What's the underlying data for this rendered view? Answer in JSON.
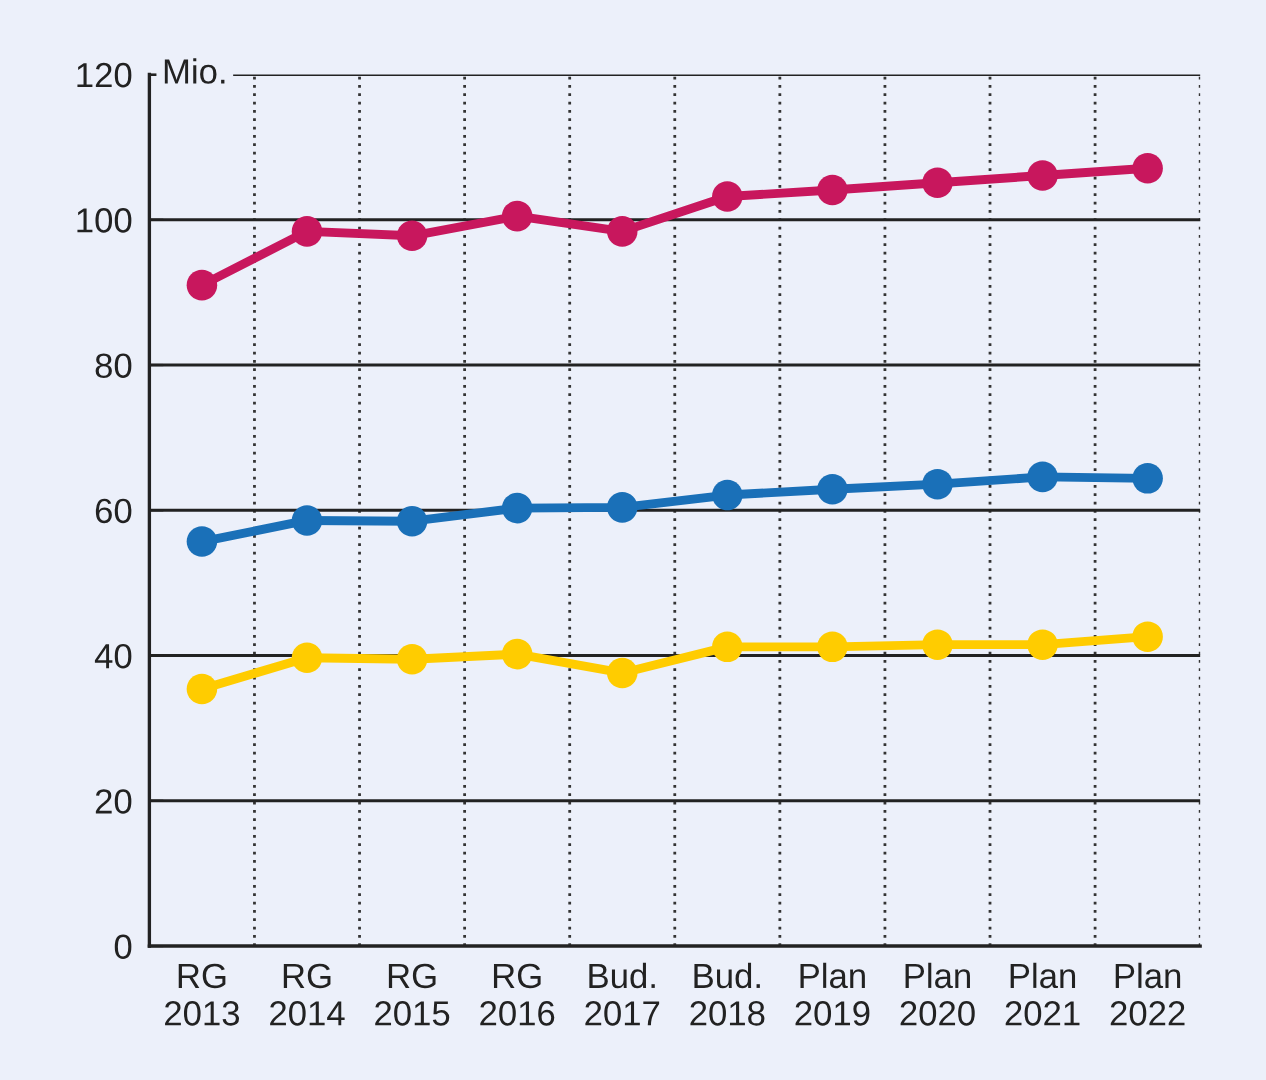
{
  "chart_data": {
    "type": "line",
    "ylabel": "Mio.",
    "categories": [
      "RG\n2013",
      "RG\n2014",
      "RG\n2015",
      "RG\n2016",
      "Bud.\n2017",
      "Bud.\n2018",
      "Plan\n2019",
      "Plan\n2020",
      "Plan\n2021",
      "Plan\n2022"
    ],
    "series": [
      {
        "color": "#c8175d",
        "values": [
          91,
          98.4,
          97.8,
          100.5,
          98.4,
          103.2,
          104.1,
          105.1,
          106.1,
          107.1
        ]
      },
      {
        "color": "#1a70b8",
        "values": [
          55.7,
          58.6,
          58.5,
          60.3,
          60.4,
          62.1,
          62.9,
          63.6,
          64.6,
          64.4
        ]
      },
      {
        "color": "#ffcc00",
        "values": [
          35.4,
          39.7,
          39.5,
          40.2,
          37.6,
          41.2,
          41.2,
          41.5,
          41.5,
          42.6
        ]
      }
    ],
    "ylim": [
      0,
      120
    ],
    "yticks": [
      0,
      20,
      40,
      60,
      80,
      100,
      120
    ],
    "grid": true,
    "marker": "circle",
    "line_style": "solid"
  }
}
